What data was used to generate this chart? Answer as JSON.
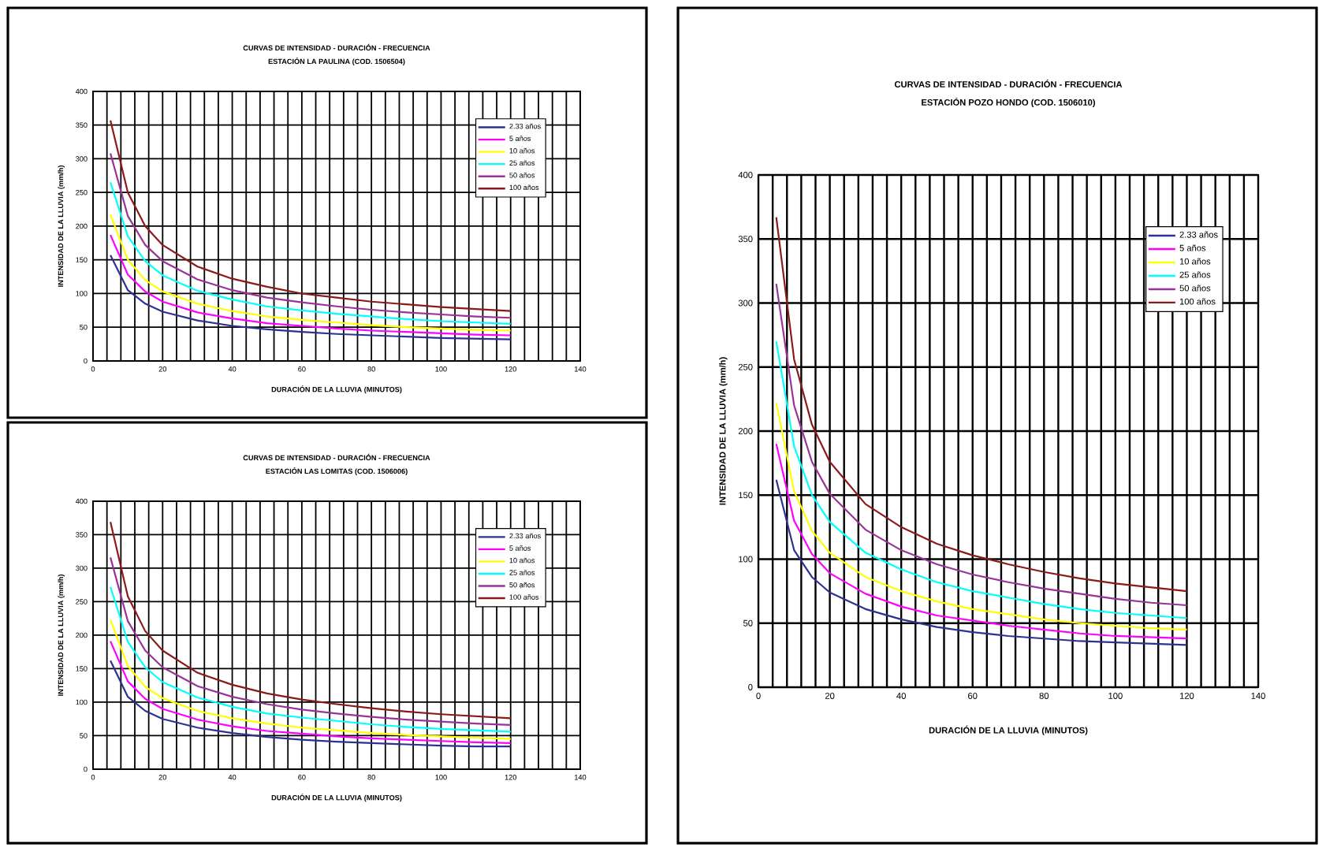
{
  "chart_data": [
    {
      "type": "line",
      "title": "CURVAS DE INTENSIDAD - DURACIÓN - FRECUENCIA",
      "subtitle": "ESTACIÓN LA PAULINA  (COD. 1506504)",
      "xlabel": "DURACIÓN DE LA LLUVIA (MINUTOS)",
      "ylabel": "INTENSIDAD DE LA LLUVIA (mm/h)",
      "grid": true,
      "legend": "top right",
      "x": [
        5,
        10,
        15,
        20,
        30,
        40,
        50,
        60,
        70,
        80,
        90,
        100,
        110,
        120
      ],
      "xlim": [
        0,
        140
      ],
      "ylim": [
        0,
        400
      ],
      "xticks": [
        0,
        {
          "value": 4,
          "label": null
        },
        {
          "value": 8,
          "label": null
        },
        {
          "value": 12,
          "label": null
        },
        {
          "value": 16,
          "label": null
        },
        20,
        {
          "value": 24,
          "label": null
        },
        {
          "value": 28,
          "label": null
        },
        {
          "value": 32,
          "label": null
        },
        {
          "value": 36,
          "label": null
        },
        40,
        {
          "value": 44,
          "label": null
        },
        {
          "value": 48,
          "label": null
        },
        {
          "value": 52,
          "label": null
        },
        {
          "value": 56,
          "label": null
        },
        60,
        {
          "value": 64,
          "label": null
        },
        {
          "value": 68,
          "label": null
        },
        {
          "value": 72,
          "label": null
        },
        {
          "value": 76,
          "label": null
        },
        80,
        {
          "value": 84,
          "label": null
        },
        {
          "value": 88,
          "label": null
        },
        {
          "value": 92,
          "label": null
        },
        {
          "value": 96,
          "label": null
        },
        100,
        {
          "value": 104,
          "label": null
        },
        {
          "value": 108,
          "label": null
        },
        {
          "value": 112,
          "label": null
        },
        {
          "value": 116,
          "label": null
        },
        120,
        {
          "value": 124,
          "label": null
        },
        {
          "value": 128,
          "label": null
        },
        {
          "value": 132,
          "label": null
        },
        {
          "value": 136,
          "label": null
        },
        140
      ],
      "yticks": [
        0,
        50,
        100,
        150,
        200,
        250,
        300,
        350,
        400
      ],
      "series": [
        {
          "name": "2.33 años",
          "color": "#2e3192",
          "values": [
            157,
            105,
            85,
            73,
            60,
            52,
            47,
            43,
            40,
            38,
            36,
            34,
            33,
            32
          ]
        },
        {
          "name": "5 años",
          "color": "#ff00ff",
          "values": [
            187,
            128,
            103,
            88,
            72,
            63,
            56,
            52,
            48,
            45,
            43,
            41,
            39,
            38
          ]
        },
        {
          "name": "10 años",
          "color": "#ffff00",
          "values": [
            217,
            150,
            120,
            103,
            85,
            74,
            66,
            61,
            57,
            53,
            50,
            48,
            46,
            45
          ]
        },
        {
          "name": "25 años",
          "color": "#00ffff",
          "values": [
            265,
            185,
            148,
            127,
            104,
            91,
            81,
            75,
            70,
            66,
            62,
            59,
            57,
            55
          ]
        },
        {
          "name": "50 años",
          "color": "#993399",
          "values": [
            308,
            215,
            172,
            148,
            121,
            105,
            94,
            87,
            81,
            76,
            72,
            69,
            66,
            64
          ]
        },
        {
          "name": "100 años",
          "color": "#8b1a1a",
          "values": [
            357,
            250,
            200,
            172,
            140,
            122,
            110,
            100,
            94,
            88,
            84,
            80,
            77,
            74
          ]
        }
      ]
    },
    {
      "type": "line",
      "title": "CURVAS DE INTENSIDAD - DURACIÓN - FRECUENCIA",
      "subtitle": "ESTACIÓN LAS LOMITAS  (COD. 1506006)",
      "xlabel": "DURACIÓN DE LA LLUVIA (MINUTOS)",
      "ylabel": "INTENSIDAD DE LA LLUVIA (mm/h)",
      "grid": true,
      "legend": "top right",
      "x": [
        5,
        10,
        15,
        20,
        30,
        40,
        50,
        60,
        70,
        80,
        90,
        100,
        110,
        120
      ],
      "xlim": [
        0,
        140
      ],
      "ylim": [
        0,
        400
      ],
      "xticks": [
        0,
        {
          "value": 4,
          "label": null
        },
        {
          "value": 8,
          "label": null
        },
        {
          "value": 12,
          "label": null
        },
        {
          "value": 16,
          "label": null
        },
        20,
        {
          "value": 24,
          "label": null
        },
        {
          "value": 28,
          "label": null
        },
        {
          "value": 32,
          "label": null
        },
        {
          "value": 36,
          "label": null
        },
        40,
        {
          "value": 44,
          "label": null
        },
        {
          "value": 48,
          "label": null
        },
        {
          "value": 52,
          "label": null
        },
        {
          "value": 56,
          "label": null
        },
        60,
        {
          "value": 64,
          "label": null
        },
        {
          "value": 68,
          "label": null
        },
        {
          "value": 72,
          "label": null
        },
        {
          "value": 76,
          "label": null
        },
        80,
        {
          "value": 84,
          "label": null
        },
        {
          "value": 88,
          "label": null
        },
        {
          "value": 92,
          "label": null
        },
        {
          "value": 96,
          "label": null
        },
        100,
        {
          "value": 104,
          "label": null
        },
        {
          "value": 108,
          "label": null
        },
        {
          "value": 112,
          "label": null
        },
        {
          "value": 116,
          "label": null
        },
        120,
        {
          "value": 124,
          "label": null
        },
        {
          "value": 128,
          "label": null
        },
        {
          "value": 132,
          "label": null
        },
        {
          "value": 136,
          "label": null
        },
        140
      ],
      "yticks": [
        0,
        50,
        100,
        150,
        200,
        250,
        300,
        350,
        400
      ],
      "series": [
        {
          "name": "2.33 años",
          "color": "#2e3192",
          "values": [
            162,
            108,
            87,
            75,
            62,
            54,
            48,
            44,
            41,
            39,
            37,
            35,
            34,
            34
          ]
        },
        {
          "name": "5 años",
          "color": "#ff00ff",
          "values": [
            191,
            131,
            105,
            90,
            74,
            64,
            57,
            53,
            49,
            46,
            44,
            42,
            40,
            39
          ]
        },
        {
          "name": "10 años",
          "color": "#ffff00",
          "values": [
            223,
            154,
            123,
            106,
            87,
            76,
            68,
            62,
            58,
            54,
            51,
            49,
            47,
            45
          ]
        },
        {
          "name": "25 años",
          "color": "#00ffff",
          "values": [
            272,
            190,
            152,
            130,
            107,
            93,
            83,
            77,
            72,
            67,
            63,
            60,
            58,
            56
          ]
        },
        {
          "name": "50 años",
          "color": "#993399",
          "values": [
            316,
            221,
            177,
            152,
            124,
            108,
            97,
            89,
            83,
            78,
            74,
            71,
            68,
            66
          ]
        },
        {
          "name": "100 años",
          "color": "#8b1a1a",
          "values": [
            369,
            258,
            206,
            177,
            144,
            126,
            113,
            104,
            97,
            91,
            86,
            82,
            79,
            76
          ]
        }
      ]
    },
    {
      "type": "line",
      "title": "CURVAS DE INTENSIDAD - DURACIÓN - FRECUENCIA",
      "subtitle": "ESTACIÓN POZO HONDO  (COD. 1506010)",
      "xlabel": "DURACIÓN DE LA LLUVIA (MINUTOS)",
      "ylabel": "INTENSIDAD DE LA LLUVIA (mm/h)",
      "grid": true,
      "legend": "top right",
      "x": [
        5,
        10,
        15,
        20,
        30,
        40,
        50,
        60,
        70,
        80,
        90,
        100,
        110,
        120
      ],
      "xlim": [
        0,
        140
      ],
      "ylim": [
        0,
        400
      ],
      "xticks": [
        0,
        {
          "value": 4,
          "label": null
        },
        {
          "value": 8,
          "label": null
        },
        {
          "value": 12,
          "label": null
        },
        {
          "value": 16,
          "label": null
        },
        20,
        {
          "value": 24,
          "label": null
        },
        {
          "value": 28,
          "label": null
        },
        {
          "value": 32,
          "label": null
        },
        {
          "value": 36,
          "label": null
        },
        40,
        {
          "value": 44,
          "label": null
        },
        {
          "value": 48,
          "label": null
        },
        {
          "value": 52,
          "label": null
        },
        {
          "value": 56,
          "label": null
        },
        60,
        {
          "value": 64,
          "label": null
        },
        {
          "value": 68,
          "label": null
        },
        {
          "value": 72,
          "label": null
        },
        {
          "value": 76,
          "label": null
        },
        80,
        {
          "value": 84,
          "label": null
        },
        {
          "value": 88,
          "label": null
        },
        {
          "value": 92,
          "label": null
        },
        {
          "value": 96,
          "label": null
        },
        100,
        {
          "value": 104,
          "label": null
        },
        {
          "value": 108,
          "label": null
        },
        {
          "value": 112,
          "label": null
        },
        {
          "value": 116,
          "label": null
        },
        120,
        {
          "value": 124,
          "label": null
        },
        {
          "value": 128,
          "label": null
        },
        {
          "value": 132,
          "label": null
        },
        {
          "value": 136,
          "label": null
        },
        140
      ],
      "yticks": [
        0,
        50,
        100,
        150,
        200,
        250,
        300,
        350,
        400
      ],
      "series": [
        {
          "name": "2.33 años",
          "color": "#2e3192",
          "values": [
            162,
            107,
            86,
            74,
            61,
            53,
            47,
            43,
            40,
            38,
            36,
            35,
            34,
            33
          ]
        },
        {
          "name": "5 años",
          "color": "#ff00ff",
          "values": [
            190,
            130,
            104,
            89,
            73,
            63,
            56,
            52,
            48,
            45,
            42,
            40,
            39,
            38
          ]
        },
        {
          "name": "10 años",
          "color": "#ffff00",
          "values": [
            222,
            153,
            122,
            105,
            86,
            75,
            67,
            61,
            57,
            53,
            50,
            48,
            46,
            45
          ]
        },
        {
          "name": "25 años",
          "color": "#00ffff",
          "values": [
            270,
            188,
            150,
            129,
            105,
            92,
            82,
            75,
            70,
            65,
            61,
            58,
            56,
            54
          ]
        },
        {
          "name": "50 años",
          "color": "#993399",
          "values": [
            315,
            220,
            176,
            151,
            123,
            107,
            96,
            88,
            82,
            77,
            73,
            69,
            66,
            64
          ]
        },
        {
          "name": "100 años",
          "color": "#8b1a1a",
          "values": [
            367,
            256,
            205,
            176,
            143,
            125,
            112,
            103,
            96,
            90,
            85,
            81,
            78,
            75
          ]
        }
      ]
    }
  ]
}
